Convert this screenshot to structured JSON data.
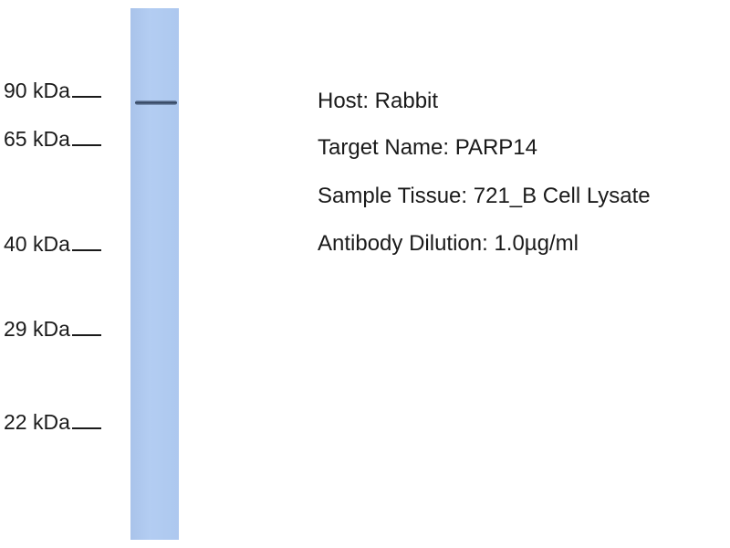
{
  "markers": [
    "90 kDa",
    "65 kDa",
    "40 kDa",
    "29 kDa",
    "22 kDa"
  ],
  "info": {
    "host": "Host: Rabbit",
    "target": "Target Name: PARP14",
    "tissue": "Sample Tissue: 721_B Cell Lysate",
    "dilution": "Antibody Dilution: 1.0µg/ml"
  },
  "colors": {
    "lane": "#adc8ef",
    "band": "#2a3b55"
  }
}
